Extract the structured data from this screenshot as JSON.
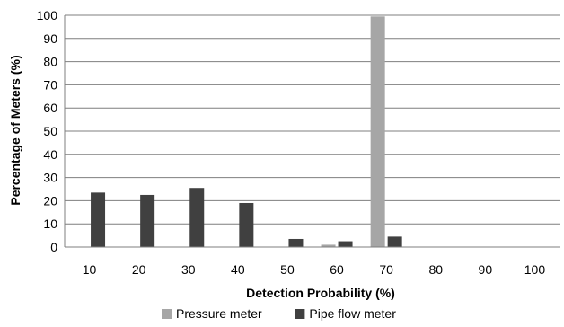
{
  "chart_data": {
    "type": "bar",
    "title": "",
    "xlabel": "Detection Probability (%)",
    "ylabel": "Percentage of Meters (%)",
    "categories": [
      "10",
      "20",
      "30",
      "40",
      "50",
      "60",
      "70",
      "80",
      "90",
      "100"
    ],
    "ylim": [
      0,
      100
    ],
    "yticks": [
      "0",
      "10",
      "20",
      "30",
      "40",
      "50",
      "60",
      "70",
      "80",
      "90",
      "100"
    ],
    "grid": "horizontal",
    "legend_position": "bottom",
    "series": [
      {
        "name": "Pressure meter",
        "color": "#a6a6a6",
        "values": [
          0,
          0,
          0,
          0,
          0,
          1,
          99.5,
          0,
          0,
          0
        ]
      },
      {
        "name": "Pipe flow meter",
        "color": "#404040",
        "values": [
          23.5,
          22.5,
          25.5,
          19,
          3.5,
          2.5,
          4.5,
          0,
          0,
          0
        ]
      }
    ]
  }
}
